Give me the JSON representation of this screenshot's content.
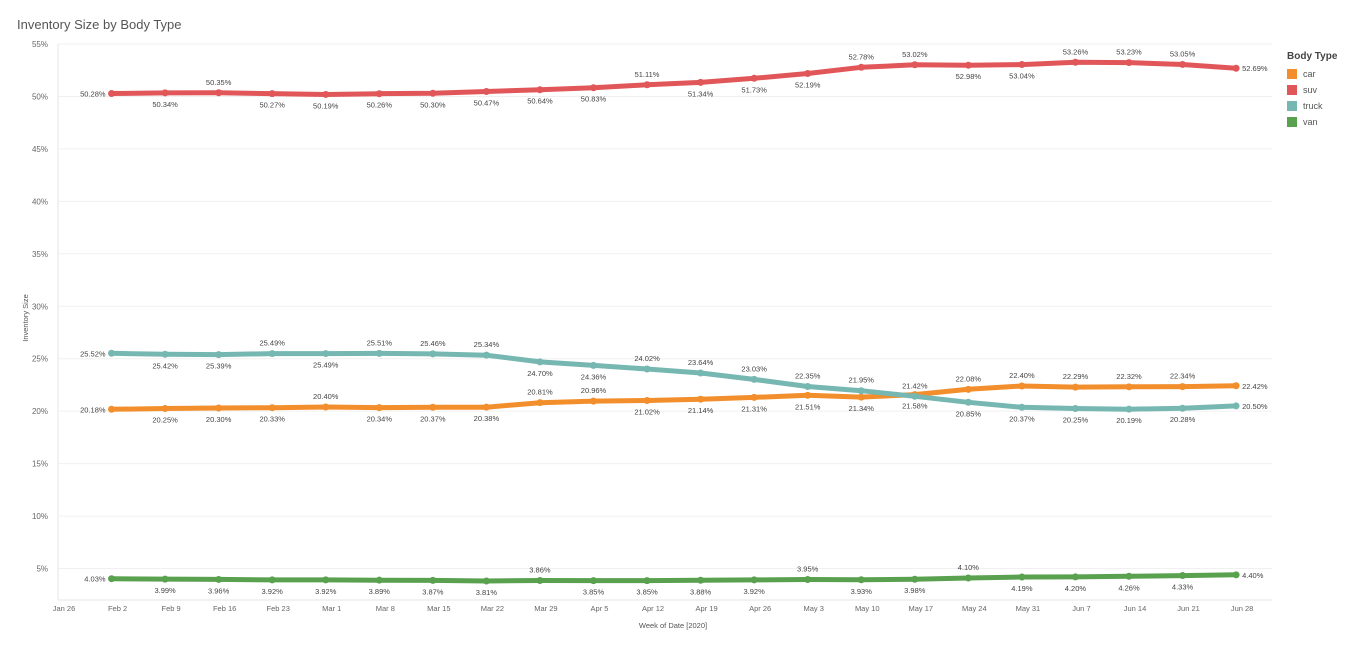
{
  "chart_data": {
    "type": "line",
    "title": "Inventory Size by Body Type",
    "xlabel": "Week of Date [2020]",
    "ylabel": "Inventory Size",
    "x": [
      "Feb 2",
      "Feb 9",
      "Feb 16",
      "Feb 23",
      "Mar 1",
      "Mar 8",
      "Mar 15",
      "Mar 22",
      "Mar 29",
      "Apr 5",
      "Apr 12",
      "Apr 19",
      "Apr 26",
      "May 3",
      "May 10",
      "May 17",
      "May 24",
      "May 31",
      "Jun 7",
      "Jun 14",
      "Jun 21",
      "Jun 28"
    ],
    "x_ticks": [
      "Jan 26",
      "Feb 2",
      "Feb 9",
      "Feb 16",
      "Feb 23",
      "Mar 1",
      "Mar 8",
      "Mar 15",
      "Mar 22",
      "Mar 29",
      "Apr 5",
      "Apr 12",
      "Apr 19",
      "Apr 26",
      "May 3",
      "May 10",
      "May 17",
      "May 24",
      "May 31",
      "Jun 7",
      "Jun 14",
      "Jun 21",
      "Jun 28"
    ],
    "y_ticks": [
      "5%",
      "10%",
      "15%",
      "20%",
      "25%",
      "30%",
      "35%",
      "40%",
      "45%",
      "50%",
      "55%"
    ],
    "ylim": [
      2,
      55
    ],
    "grid": true,
    "legend_title": "Body Type",
    "legend_position": "right",
    "series": [
      {
        "name": "car",
        "color": "#f28e2b",
        "values": [
          20.18,
          20.25,
          20.3,
          20.33,
          20.4,
          20.34,
          20.37,
          20.38,
          20.81,
          20.96,
          21.02,
          21.14,
          21.31,
          21.51,
          21.34,
          21.58,
          22.08,
          22.4,
          22.29,
          22.32,
          22.34,
          22.42
        ],
        "labels": [
          "20.18%",
          "20.25%",
          "20.30%",
          "20.33%",
          "20.40%",
          "20.34%",
          "20.37%",
          "20.38%",
          "20.81%",
          "20.96%",
          "21.02%",
          "21.14%",
          "21.31%",
          "21.51%",
          "21.34%",
          "21.58%",
          "22.08%",
          "22.40%",
          "22.29%",
          "22.32%",
          "22.34%",
          "22.42%"
        ]
      },
      {
        "name": "suv",
        "color": "#e15759",
        "values": [
          50.28,
          50.34,
          50.35,
          50.27,
          50.19,
          50.26,
          50.3,
          50.47,
          50.64,
          50.83,
          51.11,
          51.34,
          51.73,
          52.19,
          52.78,
          53.02,
          52.98,
          53.04,
          53.26,
          53.23,
          53.05,
          52.69
        ],
        "labels": [
          "50.28%",
          "50.34%",
          "50.35%",
          "50.27%",
          "50.19%",
          "50.26%",
          "50.30%",
          "50.47%",
          "50.64%",
          "50.83%",
          "51.11%",
          "51.34%",
          "51.73%",
          "52.19%",
          "52.78%",
          "53.02%",
          "52.98%",
          "53.04%",
          "53.26%",
          "53.23%",
          "53.05%",
          "52.69%"
        ]
      },
      {
        "name": "truck",
        "color": "#76b7b2",
        "values": [
          25.52,
          25.42,
          25.39,
          25.49,
          25.49,
          25.51,
          25.46,
          25.34,
          24.7,
          24.36,
          24.02,
          23.64,
          23.03,
          22.35,
          21.95,
          21.42,
          20.85,
          20.37,
          20.25,
          20.19,
          20.28,
          20.5
        ],
        "labels": [
          "25.52%",
          "25.42%",
          "25.39%",
          "25.49%",
          "25.49%",
          "25.51%",
          "25.46%",
          "25.34%",
          "24.70%",
          "24.36%",
          "24.02%",
          "23.64%",
          "23.03%",
          "22.35%",
          "21.95%",
          "21.42%",
          "20.85%",
          "20.37%",
          "20.25%",
          "20.19%",
          "20.28%",
          "20.50%"
        ]
      },
      {
        "name": "van",
        "color": "#59a14f",
        "values": [
          4.03,
          3.99,
          3.96,
          3.92,
          3.92,
          3.89,
          3.87,
          3.81,
          3.86,
          3.85,
          3.85,
          3.88,
          3.92,
          3.95,
          3.93,
          3.98,
          4.1,
          4.19,
          4.2,
          4.26,
          4.33,
          4.4
        ],
        "labels": [
          "4.03%",
          "3.99%",
          "3.96%",
          "3.92%",
          "3.92%",
          "3.89%",
          "3.87%",
          "3.81%",
          "3.86%",
          "3.85%",
          "3.85%",
          "3.88%",
          "3.92%",
          "3.95%",
          "3.93%",
          "3.98%",
          "4.10%",
          "4.19%",
          "4.20%",
          "4.26%",
          "4.33%",
          "4.40%"
        ]
      }
    ]
  }
}
